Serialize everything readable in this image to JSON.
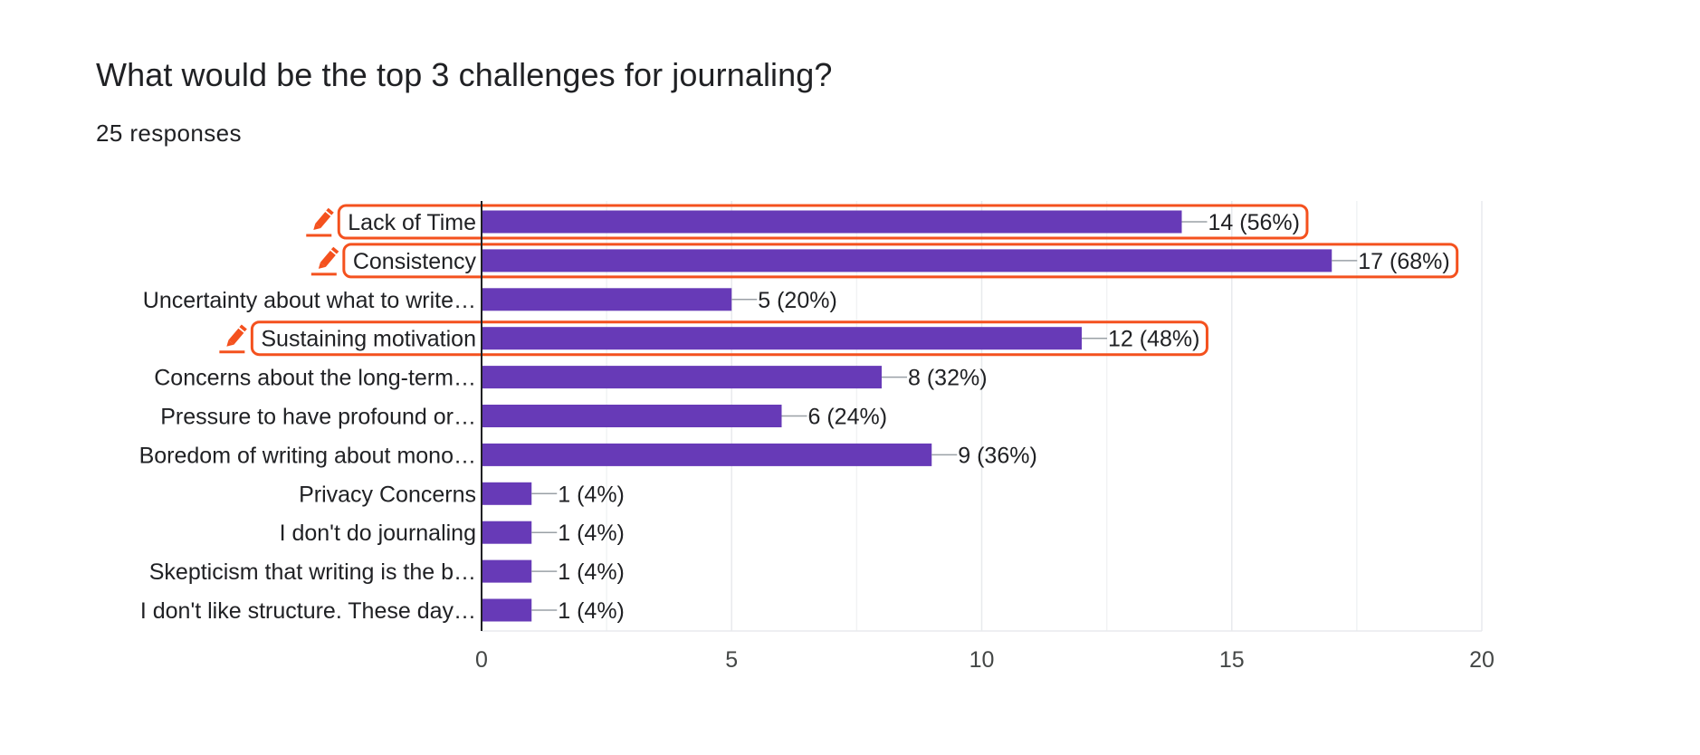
{
  "header": {
    "question": "What would be the top 3 challenges for journaling?",
    "responses": "25 responses"
  },
  "colors": {
    "bar": "#673ab7",
    "highlight": "#f4511e",
    "axis": "#202124",
    "grid": "#e8eaed",
    "text": "#202124",
    "tick": "#444746"
  },
  "chart_data": {
    "type": "bar",
    "orientation": "horizontal",
    "title": "What would be the top 3 challenges for journaling?",
    "subtitle": "25 responses",
    "categories": [
      "Lack of Time",
      "Consistency",
      "Uncertainty about what to write…",
      "Sustaining motivation",
      "Concerns about the long-term…",
      "Pressure to have profound or…",
      "Boredom of writing about mono…",
      "Privacy Concerns",
      "I don't do journaling",
      "Skepticism that writing is the b…",
      "I don't like structure. These day…"
    ],
    "values": [
      14,
      17,
      5,
      12,
      8,
      6,
      9,
      1,
      1,
      1,
      1
    ],
    "value_labels": [
      "14 (56%)",
      "17 (68%)",
      "5 (20%)",
      "12 (48%)",
      "8 (32%)",
      "6 (24%)",
      "9 (36%)",
      "1 (4%)",
      "1 (4%)",
      "1 (4%)",
      "1 (4%)"
    ],
    "highlighted": [
      true,
      true,
      false,
      true,
      false,
      false,
      false,
      false,
      false,
      false,
      false
    ],
    "xlim": [
      0,
      20
    ],
    "xticks": [
      0,
      5,
      10,
      15,
      20
    ],
    "xtick_labels": [
      "0",
      "5",
      "10",
      "15",
      "20"
    ],
    "minor_gridlines": true,
    "xlabel": "",
    "ylabel": ""
  },
  "icons": {
    "highlight_marker": "pencil-icon"
  }
}
